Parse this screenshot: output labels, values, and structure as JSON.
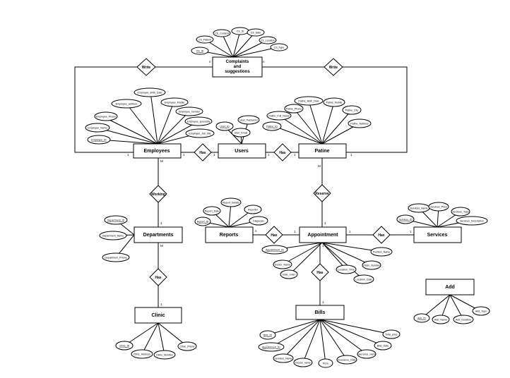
{
  "entities": {
    "complaints": [
      "Complaints",
      "and",
      "suggestions"
    ],
    "employees": "Employees",
    "users": "Users",
    "patine": "Patine",
    "departments": "Departments",
    "reports": "Reports",
    "appointment": "Appointment",
    "services": "Services",
    "clinic": "Clinic",
    "bills": "Bills",
    "add": "Add"
  },
  "relationships": {
    "write_left": "Write",
    "write_right": "Write",
    "has_emp_users": "Has",
    "has_users_patine": "Has",
    "working": "Working",
    "reserve": "Reserve",
    "has_dept_clinic": "Has",
    "has_reports_appt": "Has",
    "has_appt_services": "Has",
    "has_appt_bills": "Has"
  },
  "attributes": {
    "complaints": [
      "CS_ID",
      "CS_Patient",
      "CS_Content",
      "CS_ID",
      "CS_Date",
      "CS_Location",
      "CS_Type"
    ],
    "employees": [
      "Employee_Birth_Date",
      "Employee_address",
      "Employee_Mobile",
      "Employee_Phone",
      "Employee_Gender",
      "Employee_Name",
      "Employee_speciality",
      "Employee_ID",
      "Employee_Job_title"
    ],
    "users": [
      "User_ID",
      "User_Password",
      "User_Email"
    ],
    "patine": [
      "Patine_Birth_Date",
      "Patine_Mobile",
      "Patine_Phone",
      "Patine_Full_Name",
      "Patine_City",
      "Patine_ID",
      "Patine_Address"
    ],
    "departments": [
      "Department_ID",
      "Department_Name",
      "Department_Phone"
    ],
    "reports": [
      "Report_Details",
      "Report_Date",
      "Reporter",
      "Report_ID",
      "Diagnosis"
    ],
    "appointment": [
      "Appointment_ID",
      "Doctor_Name",
      "Date_order",
      "Location_Time",
      "Order_Number",
      "Position_Name",
      "Location_Date"
    ],
    "services": [
      "Services_Name",
      "Services_Price",
      "Services_ID",
      "Services_Type",
      "Services_Description"
    ],
    "clinic": [
      "Clinic_ID",
      "Clinic_Address",
      "Clinic_Number",
      "Clinic_Phone"
    ],
    "bills": [
      "Bills_ID",
      "Appointment_ID",
      "Services_Name",
      "Doctor_name",
      "Price",
      "Insurance_Date",
      "Insurance_name",
      "Bills_Date",
      "Total_price"
    ],
    "add": [
      "Add_ID",
      "Add_Name",
      "Add_Duration",
      "Add_Type"
    ]
  },
  "cardinalities": {
    "c_comp_left": "n",
    "c_comp_right": "n",
    "c_emp_left": "1",
    "c_emp_right": "1",
    "c_users_left": "1",
    "c_users_right": "1",
    "c_pat_left": "1",
    "c_pat_right": "1",
    "c_emp_m": "M",
    "c_dept_top": "1",
    "c_dept_bottom": "M",
    "c_clinic_top": "1",
    "c_pat_m": "M",
    "c_appt_top": "1",
    "c_rep_n": "n",
    "c_appt_left": "1",
    "c_appt_right": "1",
    "c_serv_left": "1",
    "c_bills_top": "1",
    "c_appt_bottom": "1"
  }
}
